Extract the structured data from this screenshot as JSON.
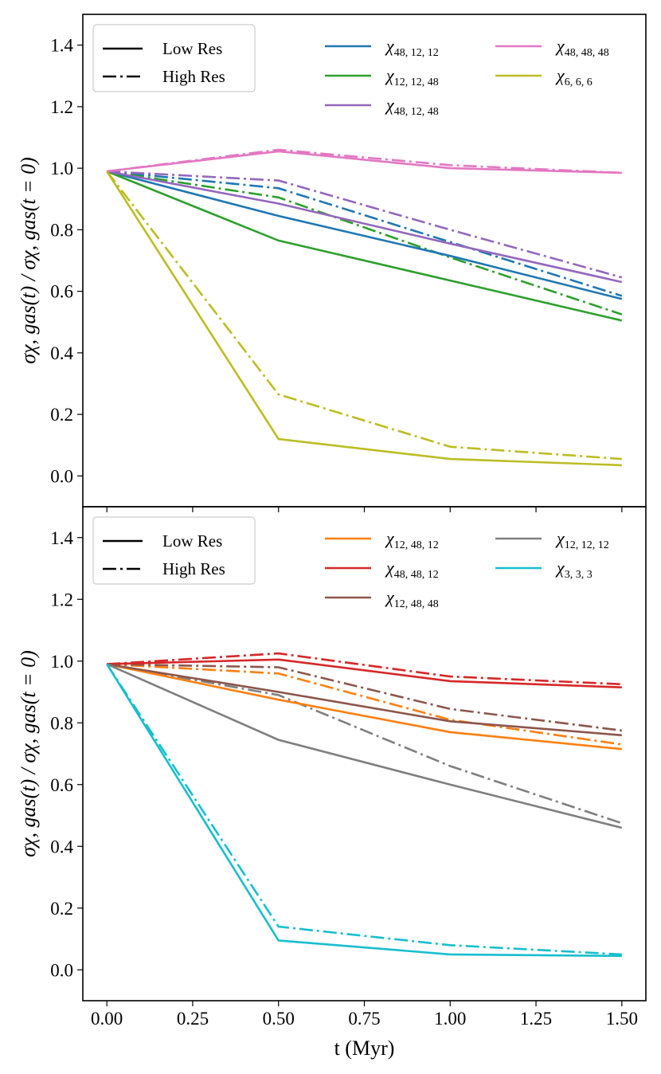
{
  "chart_data": [
    {
      "type": "line",
      "ylabel": "σχ, gas(t) / σχ, gas(t = 0)",
      "xlabel": "",
      "xlim": [
        -0.07,
        1.57
      ],
      "ylim": [
        -0.1,
        1.5
      ],
      "x": [
        0.0,
        0.5,
        1.0,
        1.5
      ],
      "xticks": [],
      "yticks": [
        "0.0",
        "0.2",
        "0.4",
        "0.6",
        "0.8",
        "1.0",
        "1.2",
        "1.4"
      ],
      "style_legend": [
        {
          "label": "Low Res",
          "dash": "solid"
        },
        {
          "label": "High Res",
          "dash": "dashdot"
        }
      ],
      "series": [
        {
          "name": "48, 12, 12",
          "color": "#1f77b4",
          "low": [
            0.99,
            0.845,
            0.715,
            0.575
          ],
          "high": [
            0.99,
            0.935,
            0.76,
            0.585
          ]
        },
        {
          "name": "12, 12, 48",
          "color": "#2ca02c",
          "low": [
            0.99,
            0.765,
            0.635,
            0.505
          ],
          "high": [
            0.99,
            0.905,
            0.71,
            0.525
          ]
        },
        {
          "name": "48, 12, 48",
          "color": "#9467bd",
          "low": [
            0.99,
            0.885,
            0.755,
            0.63
          ],
          "high": [
            0.99,
            0.96,
            0.8,
            0.645
          ]
        },
        {
          "name": "48, 48, 48",
          "color": "#e377c2",
          "low": [
            0.99,
            1.055,
            1.0,
            0.985
          ],
          "high": [
            0.99,
            1.06,
            1.01,
            0.985
          ]
        },
        {
          "name": "6, 6, 6",
          "color": "#bcbd22",
          "low": [
            0.99,
            0.12,
            0.055,
            0.035
          ],
          "high": [
            0.99,
            0.265,
            0.095,
            0.055
          ]
        }
      ]
    },
    {
      "type": "line",
      "ylabel": "σχ, gas(t) / σχ, gas(t = 0)",
      "xlabel": "t (Myr)",
      "xlim": [
        -0.07,
        1.57
      ],
      "ylim": [
        -0.1,
        1.5
      ],
      "x": [
        0.0,
        0.5,
        1.0,
        1.5
      ],
      "xticks": [
        "0.00",
        "0.25",
        "0.50",
        "0.75",
        "1.00",
        "1.25",
        "1.50"
      ],
      "yticks": [
        "0.0",
        "0.2",
        "0.4",
        "0.6",
        "0.8",
        "1.0",
        "1.2",
        "1.4"
      ],
      "style_legend": [
        {
          "label": "Low Res",
          "dash": "solid"
        },
        {
          "label": "High Res",
          "dash": "dashdot"
        }
      ],
      "series": [
        {
          "name": "12, 48, 12",
          "color": "#ff7f0e",
          "low": [
            0.99,
            0.875,
            0.77,
            0.715
          ],
          "high": [
            0.99,
            0.96,
            0.81,
            0.73
          ]
        },
        {
          "name": "48, 48, 12",
          "color": "#d62728",
          "low": [
            0.99,
            1.005,
            0.935,
            0.915
          ],
          "high": [
            0.99,
            1.025,
            0.95,
            0.925
          ]
        },
        {
          "name": "12, 48, 48",
          "color": "#8c564b",
          "low": [
            0.99,
            0.9,
            0.805,
            0.76
          ],
          "high": [
            0.99,
            0.98,
            0.845,
            0.775
          ]
        },
        {
          "name": "12, 12, 12",
          "color": "#7f7f7f",
          "low": [
            0.99,
            0.745,
            0.6,
            0.46
          ],
          "high": [
            0.99,
            0.89,
            0.66,
            0.475
          ]
        },
        {
          "name": "3, 3, 3",
          "color": "#17becf",
          "low": [
            0.99,
            0.095,
            0.05,
            0.045
          ],
          "high": [
            0.99,
            0.14,
            0.08,
            0.05
          ]
        }
      ]
    }
  ]
}
